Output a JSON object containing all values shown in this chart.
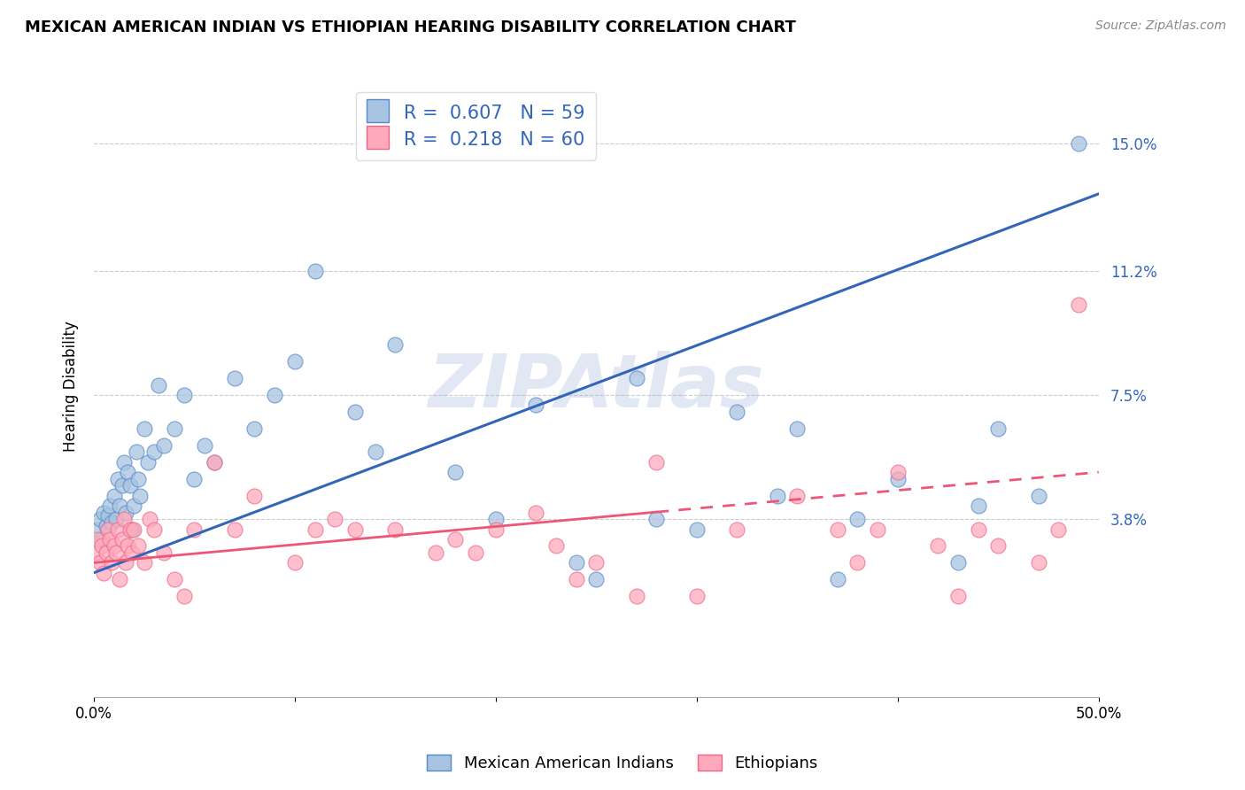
{
  "title": "MEXICAN AMERICAN INDIAN VS ETHIOPIAN HEARING DISABILITY CORRELATION CHART",
  "source_text": "Source: ZipAtlas.com",
  "ylabel": "Hearing Disability",
  "legend_label_1": "Mexican American Indians",
  "legend_label_2": "Ethiopians",
  "R1": "0.607",
  "N1": "59",
  "R2": "0.218",
  "N2": "60",
  "color_blue": "#A8C4E0",
  "color_blue_edge": "#5588CC",
  "color_blue_line": "#3366BB",
  "color_pink": "#FFAABC",
  "color_pink_edge": "#EE6688",
  "color_pink_line": "#EE5577",
  "xlim": [
    0.0,
    50.0
  ],
  "ylim": [
    -1.5,
    17.0
  ],
  "yticks": [
    0.0,
    3.8,
    7.5,
    11.2,
    15.0
  ],
  "ytick_labels": [
    "",
    "3.8%",
    "7.5%",
    "11.2%",
    "15.0%"
  ],
  "xticks": [
    0.0,
    10.0,
    20.0,
    30.0,
    40.0,
    50.0
  ],
  "xtick_labels": [
    "0.0%",
    "",
    "",
    "",
    "",
    "50.0%"
  ],
  "watermark": "ZIPAtlas",
  "watermark_color": "#AABBDD",
  "background_color": "#FFFFFF",
  "blue_line_x0": 0.0,
  "blue_line_y0": 2.2,
  "blue_line_x1": 50.0,
  "blue_line_y1": 13.5,
  "pink_line_x0": 0.0,
  "pink_line_y0": 2.5,
  "pink_line_x1": 50.0,
  "pink_line_y1": 5.2,
  "pink_dash_start_x": 28.0,
  "blue_scatter_x": [
    0.2,
    0.3,
    0.4,
    0.5,
    0.6,
    0.7,
    0.8,
    0.9,
    1.0,
    1.1,
    1.2,
    1.3,
    1.4,
    1.5,
    1.6,
    1.7,
    1.8,
    1.9,
    2.0,
    2.1,
    2.2,
    2.3,
    2.5,
    2.7,
    3.0,
    3.2,
    3.5,
    4.0,
    4.5,
    5.0,
    5.5,
    6.0,
    7.0,
    8.0,
    9.0,
    10.0,
    11.0,
    13.0,
    14.0,
    15.0,
    18.0,
    20.0,
    22.0,
    24.0,
    25.0,
    27.0,
    28.0,
    30.0,
    32.0,
    34.0,
    35.0,
    37.0,
    38.0,
    40.0,
    43.0,
    44.0,
    45.0,
    47.0,
    49.0
  ],
  "blue_scatter_y": [
    3.5,
    3.8,
    3.2,
    4.0,
    3.6,
    3.9,
    4.2,
    3.7,
    4.5,
    3.8,
    5.0,
    4.2,
    4.8,
    5.5,
    4.0,
    5.2,
    4.8,
    3.5,
    4.2,
    5.8,
    5.0,
    4.5,
    6.5,
    5.5,
    5.8,
    7.8,
    6.0,
    6.5,
    7.5,
    5.0,
    6.0,
    5.5,
    8.0,
    6.5,
    7.5,
    8.5,
    11.2,
    7.0,
    5.8,
    9.0,
    5.2,
    3.8,
    7.2,
    2.5,
    2.0,
    8.0,
    3.8,
    3.5,
    7.0,
    4.5,
    6.5,
    2.0,
    3.8,
    5.0,
    2.5,
    4.2,
    6.5,
    4.5,
    15.0
  ],
  "pink_scatter_x": [
    0.1,
    0.2,
    0.3,
    0.4,
    0.5,
    0.6,
    0.7,
    0.8,
    0.9,
    1.0,
    1.1,
    1.2,
    1.3,
    1.4,
    1.5,
    1.6,
    1.7,
    1.8,
    1.9,
    2.0,
    2.2,
    2.5,
    2.8,
    3.0,
    3.5,
    4.0,
    4.5,
    5.0,
    6.0,
    7.0,
    8.0,
    10.0,
    11.0,
    12.0,
    13.0,
    15.0,
    17.0,
    18.0,
    19.0,
    20.0,
    22.0,
    23.0,
    24.0,
    25.0,
    27.0,
    28.0,
    30.0,
    32.0,
    35.0,
    37.0,
    38.0,
    39.0,
    40.0,
    42.0,
    43.0,
    44.0,
    45.0,
    47.0,
    48.0,
    49.0
  ],
  "pink_scatter_y": [
    2.8,
    3.2,
    2.5,
    3.0,
    2.2,
    2.8,
    3.5,
    3.2,
    2.5,
    3.0,
    2.8,
    3.5,
    2.0,
    3.2,
    3.8,
    2.5,
    3.0,
    3.5,
    2.8,
    3.5,
    3.0,
    2.5,
    3.8,
    3.5,
    2.8,
    2.0,
    1.5,
    3.5,
    5.5,
    3.5,
    4.5,
    2.5,
    3.5,
    3.8,
    3.5,
    3.5,
    2.8,
    3.2,
    2.8,
    3.5,
    4.0,
    3.0,
    2.0,
    2.5,
    1.5,
    5.5,
    1.5,
    3.5,
    4.5,
    3.5,
    2.5,
    3.5,
    5.2,
    3.0,
    1.5,
    3.5,
    3.0,
    2.5,
    3.5,
    10.2
  ]
}
